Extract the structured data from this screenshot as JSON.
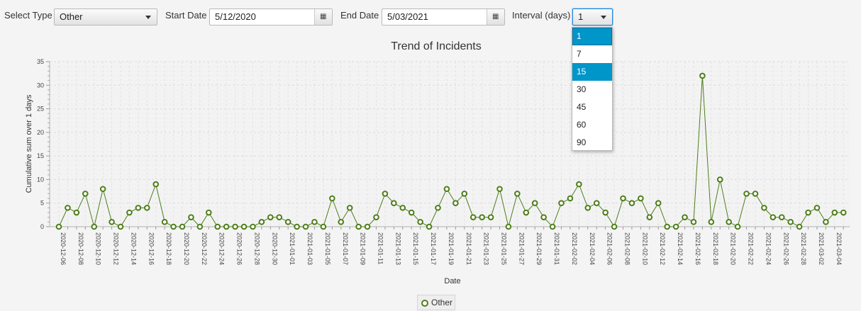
{
  "controls": {
    "select_type_label": "Select Type",
    "select_type_value": "Other",
    "start_date_label": "Start Date",
    "start_date_value": "5/12/2020",
    "end_date_label": "End Date",
    "end_date_value": "5/03/2021",
    "interval_label": "Interval (days)",
    "interval_value": "1",
    "interval_options": [
      "1",
      "7",
      "15",
      "30",
      "45",
      "60",
      "90"
    ],
    "interval_selected_index": 0,
    "interval_highlighted_index": 2
  },
  "icons": {
    "calendar": "calendar-icon",
    "dropdown": "chevron-down-icon"
  },
  "colors": {
    "series": "#4d7e1a",
    "selection": "#0096c9"
  },
  "chart_data": {
    "type": "line",
    "title": "Trend of Incidents",
    "xlabel": "Date",
    "ylabel": "Cumulative sum over 1 days",
    "ylim": [
      0,
      35
    ],
    "yticks": [
      0,
      5,
      10,
      15,
      20,
      25,
      30,
      35
    ],
    "grid": true,
    "legend_position": "bottom-center",
    "x": [
      "2020-12-06",
      "2020-12-07",
      "2020-12-08",
      "2020-12-09",
      "2020-12-10",
      "2020-12-11",
      "2020-12-12",
      "2020-12-13",
      "2020-12-14",
      "2020-12-15",
      "2020-12-16",
      "2020-12-17",
      "2020-12-18",
      "2020-12-19",
      "2020-12-20",
      "2020-12-21",
      "2020-12-22",
      "2020-12-23",
      "2020-12-24",
      "2020-12-25",
      "2020-12-26",
      "2020-12-27",
      "2020-12-28",
      "2020-12-29",
      "2020-12-30",
      "2020-12-31",
      "2021-01-01",
      "2021-01-02",
      "2021-01-03",
      "2021-01-04",
      "2021-01-05",
      "2021-01-06",
      "2021-01-07",
      "2021-01-08",
      "2021-01-09",
      "2021-01-10",
      "2021-01-11",
      "2021-01-12",
      "2021-01-13",
      "2021-01-14",
      "2021-01-15",
      "2021-01-16",
      "2021-01-17",
      "2021-01-18",
      "2021-01-19",
      "2021-01-20",
      "2021-01-21",
      "2021-01-22",
      "2021-01-23",
      "2021-01-24",
      "2021-01-25",
      "2021-01-26",
      "2021-01-27",
      "2021-01-28",
      "2021-01-29",
      "2021-01-30",
      "2021-01-31",
      "2021-02-01",
      "2021-02-02",
      "2021-02-03",
      "2021-02-04",
      "2021-02-05",
      "2021-02-06",
      "2021-02-07",
      "2021-02-08",
      "2021-02-09",
      "2021-02-10",
      "2021-02-11",
      "2021-02-12",
      "2021-02-13",
      "2021-02-14",
      "2021-02-15",
      "2021-02-16",
      "2021-02-17",
      "2021-02-18",
      "2021-02-19",
      "2021-02-20",
      "2021-02-21",
      "2021-02-22",
      "2021-02-23",
      "2021-02-24",
      "2021-02-25",
      "2021-02-26",
      "2021-02-27",
      "2021-02-28",
      "2021-03-01",
      "2021-03-02",
      "2021-03-03",
      "2021-03-04",
      "2021-03-05"
    ],
    "xticklabels": [
      "2020-12-06",
      "2020-12-08",
      "2020-12-10",
      "2020-12-12",
      "2020-12-14",
      "2020-12-16",
      "2020-12-18",
      "2020-12-20",
      "2020-12-22",
      "2020-12-24",
      "2020-12-26",
      "2020-12-28",
      "2020-12-30",
      "2021-01-01",
      "2021-01-03",
      "2021-01-05",
      "2021-01-07",
      "2021-01-09",
      "2021-01-11",
      "2021-01-13",
      "2021-01-15",
      "2021-01-17",
      "2021-01-19",
      "2021-01-21",
      "2021-01-23",
      "2021-01-25",
      "2021-01-27",
      "2021-01-29",
      "2021-01-31",
      "2021-02-02",
      "2021-02-04",
      "2021-02-06",
      "2021-02-08",
      "2021-02-10",
      "2021-02-12",
      "2021-02-14",
      "2021-02-16",
      "2021-02-18",
      "2021-02-20",
      "2021-02-22",
      "2021-02-24",
      "2021-02-26",
      "2021-02-28",
      "2021-03-02",
      "2021-03-04"
    ],
    "series": [
      {
        "name": "Other",
        "values": [
          0,
          4,
          3,
          7,
          0,
          8,
          1,
          0,
          3,
          4,
          4,
          9,
          1,
          0,
          0,
          2,
          0,
          3,
          0,
          0,
          0,
          0,
          0,
          1,
          2,
          2,
          1,
          0,
          0,
          1,
          0,
          6,
          1,
          4,
          0,
          0,
          2,
          7,
          5,
          4,
          3,
          1,
          0,
          4,
          8,
          5,
          7,
          2,
          2,
          2,
          8,
          0,
          7,
          3,
          5,
          2,
          0,
          5,
          6,
          9,
          4,
          5,
          3,
          0,
          6,
          5,
          6,
          2,
          5,
          0,
          0,
          2,
          1,
          32,
          1,
          10,
          1,
          0,
          7,
          7,
          4,
          2,
          2,
          1,
          0,
          3,
          4,
          1,
          3,
          3
        ]
      }
    ]
  }
}
